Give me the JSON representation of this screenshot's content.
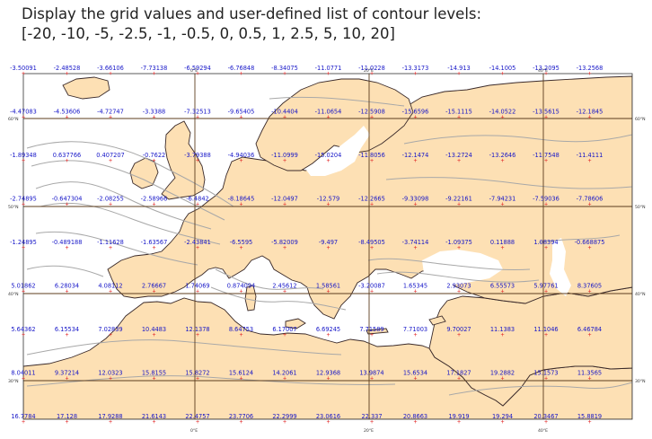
{
  "title_lines": [
    "Display the grid values and user-defined list of contour levels:",
    "[-20, -10, -5, -2.5, -1, -0.5, 0, 0.5, 1, 2.5, 5, 10, 20]"
  ],
  "map": {
    "land_color": "#fde0b4",
    "sea_color": "#ffffff",
    "coast_color": "#3a2a2a",
    "contour_color": "#a8a8a8",
    "grid_color": "#5c3d1e",
    "marker_color": "#e02020",
    "label_color": "#1515c8",
    "lon_labels": [
      "0°E",
      "20°E",
      "40°E"
    ],
    "lat_labels": [
      "60°N",
      "50°N",
      "40°N",
      "30°N"
    ],
    "grid_values": [
      [
        "-3.50091",
        "-2.48528",
        "-3.66106",
        "-7.73138",
        "-6.59294",
        "-6.76848",
        "-8.34075",
        "-11.0771",
        "-11.0228",
        "-13.3173",
        "-14.913",
        "-14.1005",
        "-13.2095",
        "-13.2568"
      ],
      [
        "-4.47083",
        "-4.53606",
        "-4.72747",
        "-3.3388",
        "-7.32513",
        "-9.65405",
        "-10.4404",
        "-11.0654",
        "-12.5908",
        "-15.6596",
        "-15.1115",
        "-14.0522",
        "-13.5615",
        "-12.1845"
      ],
      [
        "-1.89348",
        "0.637766",
        "0.407207",
        "-0.7622",
        "-3.79388",
        "-4.94036",
        "-11.0999",
        "-15.0204",
        "-11.8056",
        "-12.1474",
        "-13.2724",
        "-13.2646",
        "-11.7548",
        "-11.4111"
      ],
      [
        "-2.74895",
        "-0.647304",
        "-2.08255",
        "-2.58966",
        "-6.4842",
        "-8.18645",
        "-12.0497",
        "-12.579",
        "-12.2665",
        "-9.33098",
        "-9.22161",
        "-7.94231",
        "-7.59036",
        "-7.78606"
      ],
      [
        "-1.24895",
        "-0.489188",
        "-1.11628",
        "-1.63567",
        "-2.43841",
        "-6.5595",
        "-5.82009",
        "-9.497",
        "-8.49505",
        "-3.74114",
        "-1.09375",
        "0.11888",
        "1.08394",
        "-0.668875"
      ],
      [
        "5.01862",
        "6.28034",
        "4.08112",
        "2.76667",
        "1.74069",
        "0.874094",
        "2.45612",
        "1.58561",
        "-3.20087",
        "1.65345",
        "2.93073",
        "6.55573",
        "5.97761",
        "8.37605"
      ],
      [
        "5.64362",
        "6.15534",
        "7.02839",
        "10.4483",
        "12.1378",
        "8.64753",
        "6.17007",
        "6.69245",
        "7.71589",
        "7.71003",
        "9.70027",
        "11.1383",
        "11.1046",
        "6.46784"
      ],
      [
        "8.04011",
        "9.37214",
        "12.0323",
        "15.8155",
        "15.8272",
        "15.6124",
        "14.2061",
        "12.9368",
        "13.9874",
        "15.6534",
        "17.1827",
        "19.2882",
        "15.1573",
        "11.3565"
      ],
      [
        "16.7784",
        "17.128",
        "17.9288",
        "21.6143",
        "22.4757",
        "23.7706",
        "22.2999",
        "23.0616",
        "22.337",
        "20.8663",
        "19.919",
        "19.294",
        "20.3467",
        "15.8819"
      ]
    ]
  }
}
